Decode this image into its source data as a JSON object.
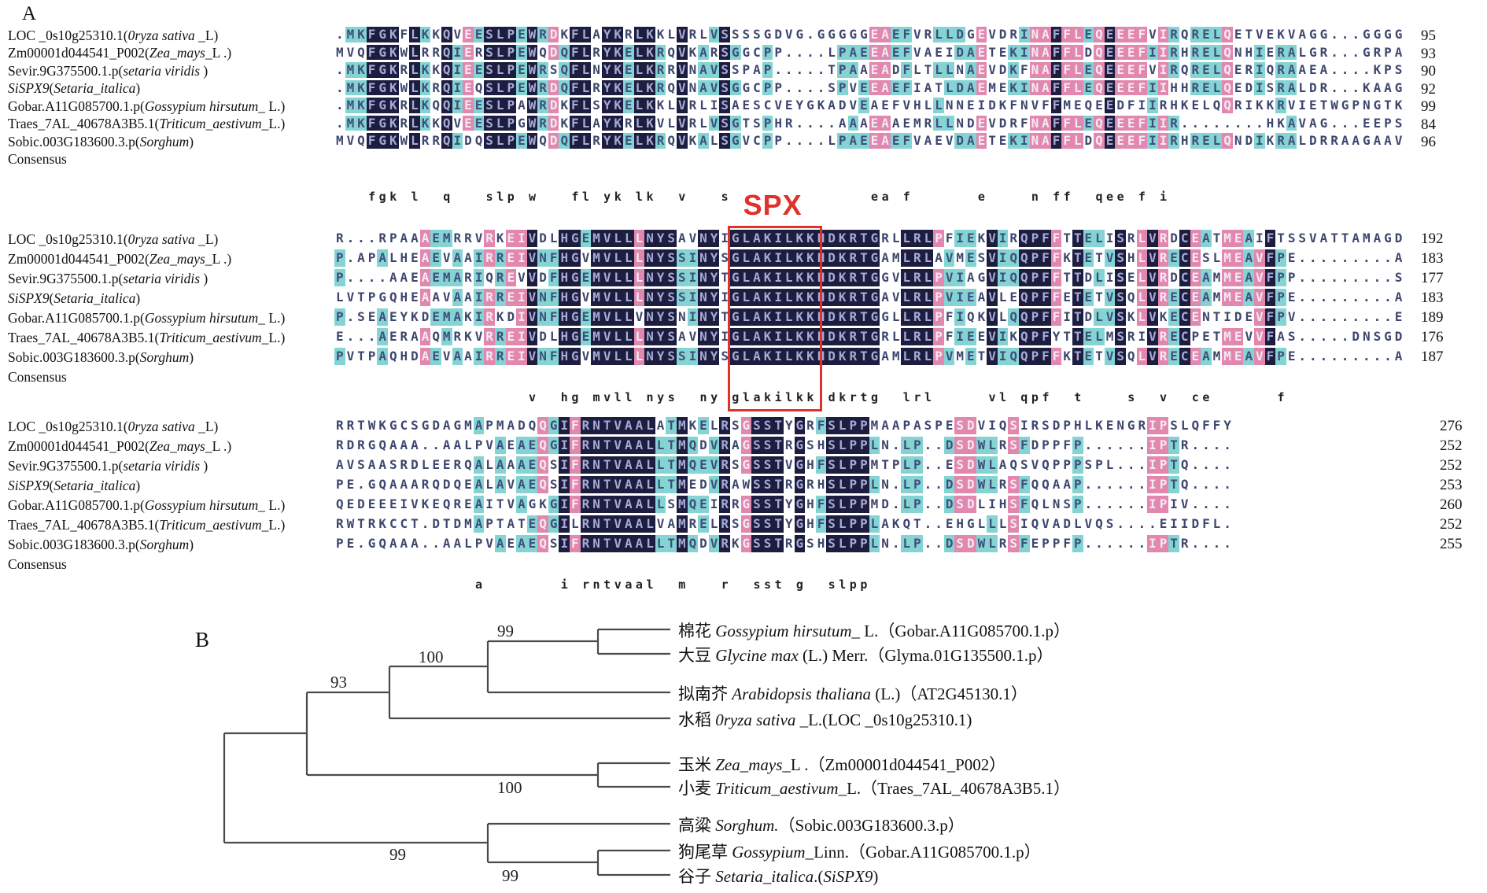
{
  "colors": {
    "dark": "#1d1d3f",
    "cyan": "#84d4d4",
    "pink": "#e287ad",
    "red": "#e0312b",
    "seq_light": "#a6abd6",
    "seq_dark": "#3d466f",
    "seq_on_cyan": "#414e7c",
    "seq_on_pink": "#f2eaf4"
  },
  "panel_a": {
    "section_label": "A",
    "spx_label": "SPX",
    "row_labels": [
      [
        [
          "LOC _0s10g25310.1(",
          0
        ],
        [
          "0ryza sativa",
          1
        ],
        [
          " _L)",
          0
        ]
      ],
      [
        [
          "Zm00001d044541_P002(",
          0
        ],
        [
          "Zea_mays",
          1
        ],
        [
          "_L .)",
          0
        ]
      ],
      [
        [
          "Sevir.9G375500.1.p(",
          0
        ],
        [
          "setaria viridis",
          1
        ],
        [
          " )",
          0
        ]
      ],
      [
        [
          "SiSPX9",
          1
        ],
        [
          "(",
          0
        ],
        [
          "Setaria_italica",
          1
        ],
        [
          ")",
          0
        ]
      ],
      [
        [
          "Gobar.A11G085700.1.p(",
          0
        ],
        [
          "Gossypium hirsutum",
          1
        ],
        [
          "_ L.)",
          0
        ]
      ],
      [
        [
          "Traes_7AL_40678A3B5.1(",
          0
        ],
        [
          "Triticum_aestivum",
          1
        ],
        [
          "_L.)",
          0
        ]
      ],
      [
        [
          "Sobic.003G183600.3.p(",
          0
        ],
        [
          "Sorghum",
          1
        ],
        [
          ")",
          0
        ]
      ],
      [
        [
          "Consensus",
          0
        ]
      ]
    ],
    "groups": [
      {
        "seqs": [
          ".MKFGKFLKKQVEESLPEWRDKFLAYKRLKKLVRLVSSSSGDVG.GGGGGEAEFVRLLDGEVDRINAFFLEQEEEFVIRQRELQETVEKVAGG...GGGG",
          "MVQFGKWLRRQIERSLPEWQDQFLRYKELKRQVKARSGGCPP....LPAEEAEFVAEIDAETEKINAFFLDQEEEFIIRHRELQNHIERALGR...GRPA",
          ".MKFGKRLKKQIEESLPEWRSQFLNYKELKRRVNAVSSPAP.....TPAAEADFLTLLNAEVDKFNAFFLEQEEEFVIRQRELQERIQRAAEA....KPS",
          ".MKFGKWLKRQIEQSLPEWRDQFLRYKELKRQVNAVSGGCPP....SPVEEAEFIATLDAEMEKINAFFLEQEEEFIIHHRELQEDISRALDR...KAAG",
          ".MKFGKRLKQQIEESLPAWRDKFLSYKELKKLVRLISAESCVEYGKADVEAEFVHLLNNEIDKFNVFFMEQEEDFIIRHKELQQRIKKRVIETWGPNGTK",
          ".MKFGKRLKKQVEESLPGWRDKFLAYKRLKVLVRLVSGTSPHR....AAAEAAEMRLLNDEVDRFNAFFLEQEEEFIIR........HKAVAG...EEPS",
          "MVQFGKWLRRQIDQSLPEWQDQFLRYKELKRQVKALSGVCPP....LPAEEAEFVAEVDAETEKINAFFLDQEEEFIIRHRELQNDIKRALDRRAAGAAV"
        ],
        "nums": [
          95,
          93,
          90,
          92,
          99,
          84,
          96
        ],
        "consensus_line": "   fgk l  q   slp w   fl yk lk  v   s             ea f      e    n ff  qee f i                      "
      },
      {
        "seqs": [
          "R...RPAAAEMRRVRKEIVDLHGEMVLLLNYSAVNYIGLAKILKKHDKRTGRLLRLPFIEKVIRQPFFTTELISRLVRDCEATMEAIFTSSVATTAMAGD",
          "P.APALHEAEVAAIRREIVNFHGVMVLLLNYSSINYSGLAKILKKHDKRTGAMLRLAVMESVIQQPFFKTETVSHLVRECESLMEAVFPE.........A",
          "P....AAEAEMARIQREVVDFHGEMVLLLNYSSINYTGLAKILKKHDKRTGGVLRLPVIAGVIQQPFFTTDLISELVRDCEAMMEAVFPP.........S",
          "LVTPGQHEAAVAAIRREIVNFHGVMVLLLNYSSINYIGLAKILKKHDKRTGAVLRLPVIEAVLEQPFFETETVSQLVRECEAMMEAVFPE.........A",
          "P.SEAEYKDEMAKIRKDIVNFHGEMVLLVNYSNINYTGLAKILKKHDKRTGGLLRLPFIQKVLQQPFFITDLVSKLVKECENTIDEVFPV.........E",
          "E...AERAAQMRKVRREIVDLHGEMVLLLNYSAVNYIGLAKILKKHDKRTGRLLRLPFIEEVIKQPFYTTELMSRIVRECPETMEVVFAS.....DNSGD",
          "PVTPAQHDAEVAAIRREIVNFHGVMVLLLNYSSINYSGLAKILKKHDKRTGAMLRLPVMETVIQQPFFKTETVSQLVRECEAMMEAVFPE.........A"
        ],
        "nums": [
          192,
          183,
          177,
          183,
          189,
          176,
          187
        ],
        "consensus_line": "                  v  hg mvll nys  ny glakilkk dkrtg  lrl     vl qpf  t    s  v  ce      f           "
      },
      {
        "seqs": [
          "RRTWKGCSGDAGMAPMADQQGIFRNTVAALATMKELRSGSSTYGRFSLPPMAAPASPESDVIQSIRSDPHLKENGRIPSLQFFY",
          "RDRGQAAA..AALPVAEAEQGIFRNTVAALLTMQDVRAGSSTRGSHSLPPLN.LP..DSDWLRSFDPPFP......IPTR....",
          "AVSAASRDLEERQALAAAEQSIFRNTVAALLTMQEVRSGSSTVGHFSLPPMTPLP..ESDWLAQSVQPPPSPL...IPTQ....",
          "PE.GQAAARQDQEALAVAEQSIFRNTVAALLTMEDVRAWSSTRGRHSLPPLN.LP..DSDWLRSFQQAAP......IPTQ....",
          "QEDEEEIVKEQREAITVAGKGIFRNTVAALLSMQEIRRGSSTYGHFSLPPMD.LP..DSDLIHSFQLNSP......IPIV....",
          "RWTRKCCT.DTDMAPTATEQGILRNTVAALVAMRELRSGSSTYGHFSLPPLAKQT..EHGLLLSIQVADLVQS....EIIDFL.",
          "PE.GQAAA..AALPVAEAEQSIFRNTVAALLTMQDVRKGSSTRGSHSLPPLN.LP..DSDWLRSFEPPFP......IPTR...."
        ],
        "nums": [
          276,
          252,
          252,
          253,
          260,
          252,
          255
        ],
        "consensus_line": "             a       i rntvaal  m   r  sst g  slpp                                  "
      }
    ]
  },
  "panel_b": {
    "section_label": "B",
    "bootstrap_values": [
      99,
      100,
      93,
      100,
      99,
      99
    ],
    "leaves": [
      {
        "parts": [
          [
            "棉花 ",
            0
          ],
          [
            "Gossypium hirsutum",
            1
          ],
          [
            "_ L.（Gobar.A11G085700.1.p）",
            0
          ]
        ]
      },
      {
        "parts": [
          [
            "大豆 ",
            0
          ],
          [
            "Glycine max",
            1
          ],
          [
            " (L.) Merr.（Glyma.01G135500.1.p）",
            0
          ]
        ]
      },
      {
        "parts": [
          [
            "拟南芥 ",
            0
          ],
          [
            "Arabidopsis thaliana",
            1
          ],
          [
            " (L.)（AT2G45130.1）",
            0
          ]
        ]
      },
      {
        "parts": [
          [
            "水稻 ",
            0
          ],
          [
            "0ryza sativa",
            1
          ],
          [
            " _L.(LOC _0s10g25310.1)",
            0
          ]
        ]
      },
      {
        "parts": [
          [
            "玉米 ",
            0
          ],
          [
            "Zea_mays",
            1
          ],
          [
            "_L .（Zm00001d044541_P002）",
            0
          ]
        ]
      },
      {
        "parts": [
          [
            "小麦 ",
            0
          ],
          [
            "Triticum_aestivum",
            1
          ],
          [
            "_L.（Traes_7AL_40678A3B5.1）",
            0
          ]
        ]
      },
      {
        "parts": [
          [
            "高粱 ",
            0
          ],
          [
            "Sorghum.",
            1
          ],
          [
            "（Sobic.003G183600.3.p）",
            0
          ]
        ]
      },
      {
        "parts": [
          [
            "狗尾草 ",
            0
          ],
          [
            "Gossypium",
            1
          ],
          [
            "_Linn.（Gobar.A11G085700.1.p）",
            0
          ]
        ]
      },
      {
        "parts": [
          [
            "谷子 ",
            0
          ],
          [
            "Setaria_italica",
            1
          ],
          [
            ".(",
            0
          ],
          [
            "SiSPX9",
            1
          ],
          [
            ")",
            0
          ]
        ]
      }
    ]
  }
}
